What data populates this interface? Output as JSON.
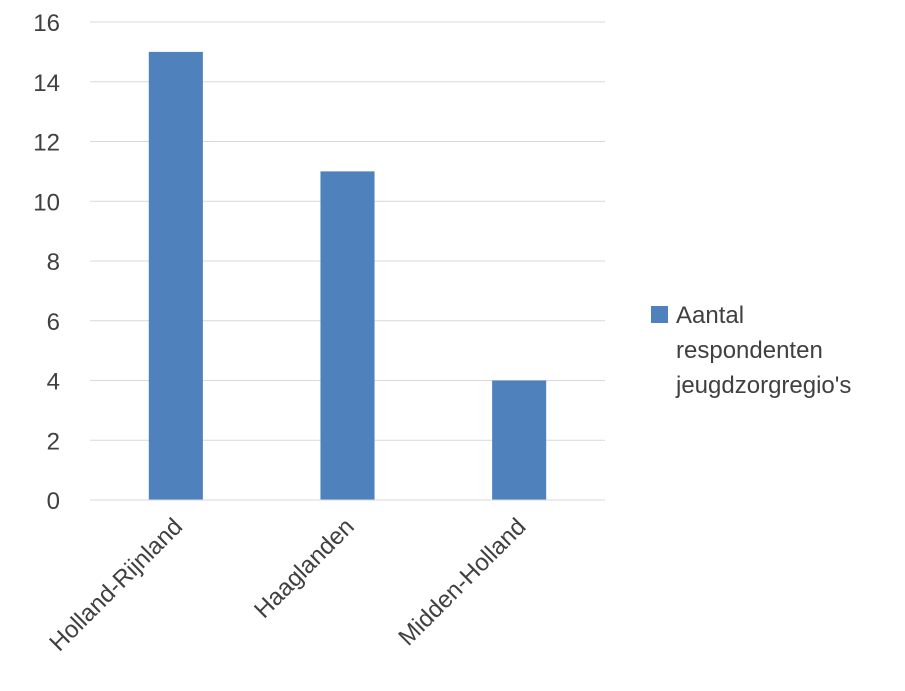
{
  "chart_data": {
    "type": "bar",
    "categories": [
      "Holland-Rijnland",
      "Haaglanden",
      "Midden-Holland"
    ],
    "series": [
      {
        "name": "Aantal respondenten jeugdzorgregio's",
        "legend_lines": [
          "Aantal",
          "respondenten",
          "jeugdzorgregio's"
        ],
        "values": [
          15,
          11,
          4
        ],
        "color": "#4f81bd"
      }
    ],
    "ylim": [
      0,
      16
    ],
    "yticks": [
      "0",
      "2",
      "4",
      "6",
      "8",
      "10",
      "12",
      "14",
      "16"
    ],
    "grid": true,
    "legend_position": "right",
    "colors": {
      "bar": "#4f81bd",
      "grid": "#d9d9d9",
      "axis": "#d9d9d9",
      "text": "#404040"
    }
  }
}
